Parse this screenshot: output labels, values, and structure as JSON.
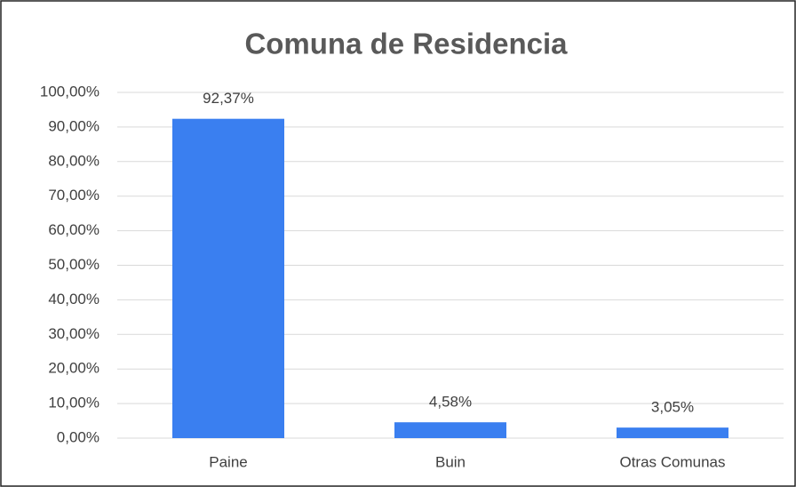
{
  "chart_data": {
    "type": "bar",
    "title": "Comuna de Residencia",
    "categories": [
      "Paine",
      "Buin",
      "Otras Comunas"
    ],
    "values": [
      92.37,
      4.58,
      3.05
    ],
    "value_labels": [
      "92,37%",
      "4,58%",
      "3,05%"
    ],
    "color": "#3a7ff0",
    "ylim": [
      0,
      100
    ],
    "yticks": [
      {
        "value": 0,
        "label": "0,00%"
      },
      {
        "value": 10,
        "label": "10,00%"
      },
      {
        "value": 20,
        "label": "20,00%"
      },
      {
        "value": 30,
        "label": "30,00%"
      },
      {
        "value": 40,
        "label": "40,00%"
      },
      {
        "value": 50,
        "label": "50,00%"
      },
      {
        "value": 60,
        "label": "60,00%"
      },
      {
        "value": 70,
        "label": "70,00%"
      },
      {
        "value": 80,
        "label": "80,00%"
      },
      {
        "value": 90,
        "label": "90,00%"
      },
      {
        "value": 100,
        "label": "100,00%"
      }
    ],
    "grid": true
  }
}
